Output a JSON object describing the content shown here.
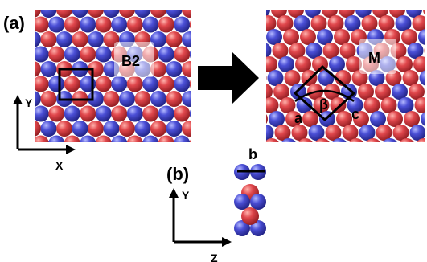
{
  "panel_a": {
    "label": "(a)",
    "b2_label": "B2",
    "m_label": "M",
    "angle_label": "β",
    "corner_a_label": "a",
    "corner_c_label": "c",
    "axes": {
      "y_label": "Y",
      "x_label": "X"
    }
  },
  "panel_b": {
    "label": "(b)",
    "b_label": "b",
    "axes": {
      "y_label": "Y",
      "z_label": "Z"
    }
  },
  "colors": {
    "red_atom": "#e0474c",
    "blue_atom": "#4b4fd6",
    "line": "#000000"
  }
}
